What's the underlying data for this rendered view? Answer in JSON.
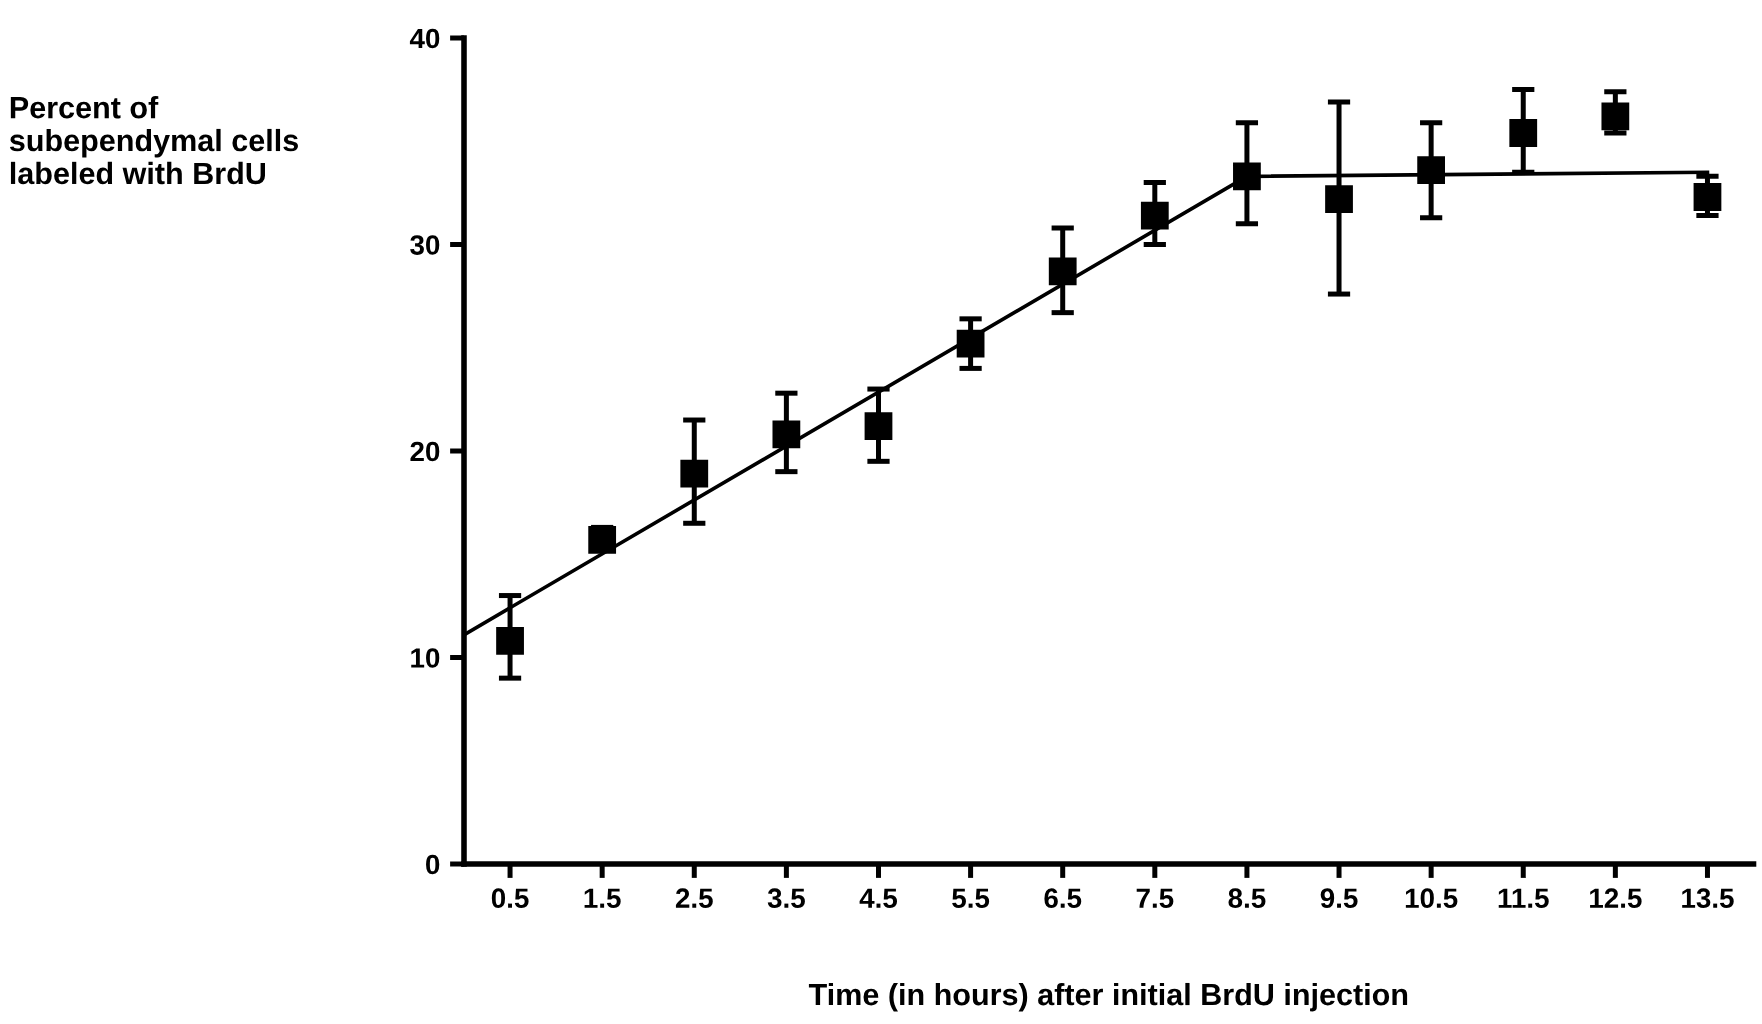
{
  "chart_data": {
    "type": "scatter",
    "xlabel": "Time (in hours) after initial BrdU injection",
    "ylabel": "Percent of\nsubependymal cells\nlabeled with BrdU",
    "xlim": [
      0,
      14
    ],
    "ylim": [
      0,
      40
    ],
    "yticks": [
      0,
      10,
      20,
      30,
      40
    ],
    "xticks": [
      0.5,
      1.5,
      2.5,
      3.5,
      4.5,
      5.5,
      6.5,
      7.5,
      8.5,
      9.5,
      10.5,
      11.5,
      12.5,
      13.5
    ],
    "marker": "square",
    "grid": false,
    "legend": false,
    "series": [
      {
        "color": "#000000",
        "x": [
          0.5,
          1.5,
          2.5,
          3.5,
          4.5,
          5.5,
          6.5,
          7.5,
          8.5,
          9.5,
          10.5,
          11.5,
          12.5,
          13.5
        ],
        "values": [
          10.8,
          15.7,
          18.9,
          20.8,
          21.2,
          25.2,
          28.7,
          31.4,
          33.3,
          32.2,
          33.6,
          35.4,
          36.2,
          32.3
        ],
        "errors": [
          [
            9.0,
            13.0
          ],
          [
            15.2,
            16.3
          ],
          [
            16.5,
            21.5
          ],
          [
            19.0,
            22.8
          ],
          [
            19.5,
            23.0
          ],
          [
            24.0,
            26.4
          ],
          [
            26.7,
            30.8
          ],
          [
            30.0,
            33.0
          ],
          [
            31.0,
            35.9
          ],
          [
            27.6,
            36.9
          ],
          [
            31.3,
            35.9
          ],
          [
            33.5,
            37.5
          ],
          [
            35.4,
            37.4
          ],
          [
            31.4,
            33.3
          ]
        ]
      },
      {
        "type": "line",
        "color": "#000000",
        "x": [
          0,
          8.5,
          13.5
        ],
        "values": [
          11.1,
          33.3,
          33.5
        ],
        "marker": "none",
        "line_style": "solid"
      }
    ]
  }
}
